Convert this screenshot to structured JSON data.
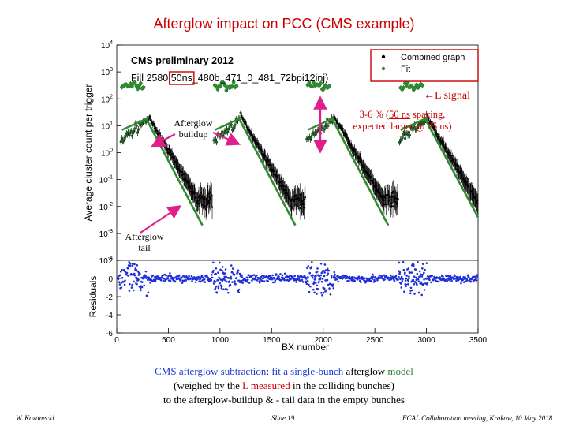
{
  "title": "Afterglow impact on PCC (CMS example)",
  "chart_data": {
    "type": "scatter",
    "title": "",
    "header_lines": [
      "CMS preliminary 2012",
      "Fill 2580 50ns_480b_471_0_481_72bpi12inj)"
    ],
    "highlight_in_header": "50ns",
    "xlabel": "BX number",
    "xlim": [
      0,
      3500
    ],
    "xticks": [
      0,
      500,
      1000,
      1500,
      2000,
      2500,
      3000,
      3500
    ],
    "upper_panel": {
      "ylabel": "Average cluster count per trigger",
      "yscale": "log",
      "ylim": [
        0.0001,
        10000
      ],
      "yticks": [
        "10^4",
        "10^3",
        "10^2",
        "10^1",
        "10^0",
        "10^-1",
        "10^-2",
        "10^-3",
        "10^-4"
      ],
      "colliding_bunch_level": 300,
      "buildup_plateau": 20,
      "bunch_train_starts": [
        50,
        950,
        1850,
        2750
      ],
      "bunch_train_length": 220,
      "fit_tail_slopes": [
        {
          "x0": 280,
          "y0": 20,
          "x1": 830,
          "y1": 0.002
        },
        {
          "x0": 1180,
          "y0": 20,
          "x1": 1730,
          "y1": 0.002
        },
        {
          "x0": 2080,
          "y0": 20,
          "x1": 2630,
          "y1": 0.002
        },
        {
          "x0": 2980,
          "y0": 20,
          "x1": 3500,
          "y1": 0.004
        }
      ]
    },
    "lower_panel": {
      "ylabel": "Residuals",
      "ylim": [
        -6,
        2
      ],
      "yticks": [
        2,
        0,
        -2,
        -4,
        -6
      ]
    },
    "legend": [
      {
        "label": "Combined graph",
        "color": "#000000"
      },
      {
        "label": "Fit",
        "color": "#2e8b2e"
      }
    ],
    "legend_position": "top-right"
  },
  "annotations": {
    "l_signal": "L signal",
    "spacing_line1_pre": "3-6 % (",
    "spacing_line1_link": "50 ns",
    "spacing_line1_post": " spacing,",
    "spacing_line2": "expected larger @ 25 ns)",
    "buildup_line1": "Afterglow",
    "buildup_line2": "buildup",
    "tail_line1": "Afterglow",
    "tail_line2": "tail"
  },
  "caption": {
    "l1_a": "CMS afterglow subtraction",
    "l1_b": ": ",
    "l1_c": "fit a single-bunch",
    "l1_d": " afterglow ",
    "l1_e": "model",
    "l2_a": "(weighed by the ",
    "l2_b": "L measured",
    "l2_c": " in the colliding bunches)",
    "l3": "to the afterglow-buildup & - tail data in the empty bunches"
  },
  "footer": {
    "author": "W. Kozanecki",
    "slide": "Slide 19",
    "meeting": "FCAL Collaboration meeting, Krakow, 10 May 2018"
  },
  "colors": {
    "title": "#cc0000",
    "fit": "#2e8b2e",
    "data": "#000000",
    "residual": "#1f2fd6",
    "annotation_red": "#cc0000",
    "caption_blue": "#1a3bd6",
    "caption_green": "#2e7d2e",
    "caption_red": "#cc0000",
    "arrow_magenta": "#e0208a",
    "header_box": "#cc0000"
  }
}
